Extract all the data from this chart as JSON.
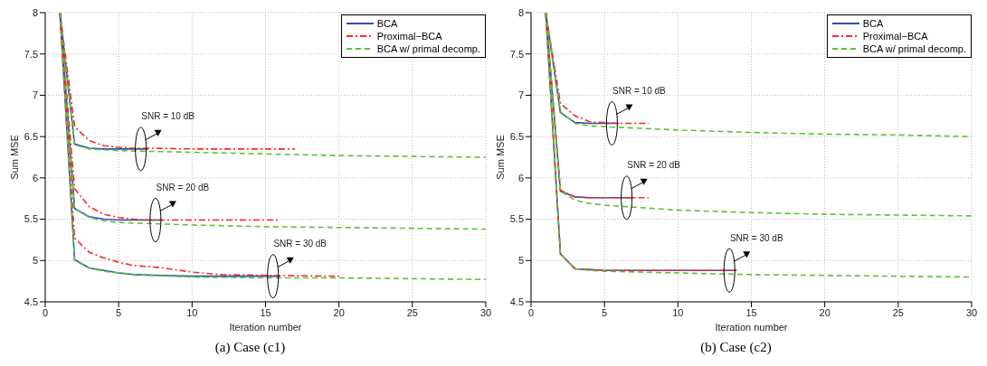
{
  "chart_data": [
    {
      "type": "line",
      "xlabel": "Iteration number",
      "ylabel": "Sum MSE",
      "xlim": [
        0,
        30
      ],
      "xticks": [
        0,
        5,
        10,
        15,
        20,
        25,
        30
      ],
      "ylim": [
        4.5,
        8
      ],
      "yticks": [
        4.5,
        5,
        5.5,
        6,
        6.5,
        7,
        7.5,
        8
      ],
      "grid": true,
      "legend": "top right",
      "series": [
        {
          "name": "BCA",
          "color": "#2f4fae",
          "line_style": "solid",
          "x": [
            1,
            2,
            3,
            4,
            5,
            6,
            7
          ],
          "values": [
            8,
            6.41,
            6.36,
            6.35,
            6.35,
            6.35,
            6.35
          ]
        },
        {
          "name": "Proximal−BCA",
          "color": "#ff2626",
          "line_style": "dashdot",
          "x": [
            1,
            2,
            3,
            4,
            5,
            6,
            7,
            10,
            13,
            17
          ],
          "values": [
            8,
            6.62,
            6.45,
            6.39,
            6.37,
            6.36,
            6.36,
            6.35,
            6.35,
            6.35
          ]
        },
        {
          "name": "BCA w/ primal decomp.",
          "color": "#5cc236",
          "line_style": "dashed",
          "x": [
            1,
            2,
            3,
            4,
            5,
            10,
            15,
            20,
            25,
            30
          ],
          "values": [
            8,
            6.4,
            6.35,
            6.34,
            6.33,
            6.31,
            6.29,
            6.27,
            6.26,
            6.25
          ]
        },
        {
          "color": "#2f4fae",
          "line_style": "solid",
          "x": [
            1,
            2,
            3,
            4,
            5,
            6,
            7,
            8
          ],
          "values": [
            8,
            5.63,
            5.53,
            5.5,
            5.49,
            5.49,
            5.49,
            5.49
          ]
        },
        {
          "color": "#ff2626",
          "line_style": "dashdot",
          "x": [
            1,
            2,
            3,
            4,
            5,
            6,
            7,
            8,
            12,
            16
          ],
          "values": [
            8,
            5.87,
            5.65,
            5.56,
            5.52,
            5.5,
            5.49,
            5.49,
            5.49,
            5.49
          ]
        },
        {
          "color": "#5cc236",
          "line_style": "dashed",
          "x": [
            1,
            2,
            3,
            4,
            5,
            10,
            15,
            20,
            25,
            30
          ],
          "values": [
            8,
            5.63,
            5.52,
            5.48,
            5.46,
            5.43,
            5.41,
            5.4,
            5.39,
            5.38
          ]
        },
        {
          "color": "#2f4fae",
          "line_style": "solid",
          "x": [
            1,
            2,
            3,
            4,
            5,
            6,
            8,
            10,
            13,
            16
          ],
          "values": [
            8,
            5.01,
            4.91,
            4.88,
            4.85,
            4.83,
            4.82,
            4.81,
            4.81,
            4.81
          ]
        },
        {
          "color": "#ff2626",
          "line_style": "dashdot",
          "x": [
            1,
            2,
            3,
            4,
            5,
            6,
            8,
            10,
            12,
            15,
            20
          ],
          "values": [
            8,
            5.27,
            5.1,
            5.03,
            4.98,
            4.94,
            4.91,
            4.86,
            4.83,
            4.82,
            4.81
          ]
        },
        {
          "color": "#5cc236",
          "line_style": "dashed",
          "x": [
            1,
            2,
            3,
            4,
            5,
            7,
            10,
            15,
            20,
            25,
            30
          ],
          "values": [
            8,
            5.0,
            4.91,
            4.87,
            4.85,
            4.82,
            4.8,
            4.79,
            4.79,
            4.78,
            4.77
          ]
        }
      ],
      "annotations": [
        "SNR = 10 dB",
        "SNR = 20 dB",
        "SNR = 30 dB",
        "(a)  Case (c1)"
      ]
    },
    {
      "type": "line",
      "xlabel": "Iteration number",
      "ylabel": "Sum MSE",
      "xlim": [
        0,
        30
      ],
      "xticks": [
        0,
        5,
        10,
        15,
        20,
        25,
        30
      ],
      "ylim": [
        4.5,
        8
      ],
      "yticks": [
        4.5,
        5,
        5.5,
        6,
        6.5,
        7,
        7.5,
        8
      ],
      "grid": true,
      "legend": "top right",
      "series": [
        {
          "name": "BCA",
          "color": "#2f4fae",
          "line_style": "solid",
          "x": [
            1,
            2,
            3,
            4,
            5,
            6
          ],
          "values": [
            8,
            6.79,
            6.67,
            6.66,
            6.66,
            6.66
          ]
        },
        {
          "name": "Proximal−BCA",
          "color": "#ff2626",
          "line_style": "dashdot",
          "x": [
            1,
            2,
            3,
            4,
            5,
            6,
            7,
            8
          ],
          "values": [
            8,
            6.9,
            6.75,
            6.68,
            6.67,
            6.66,
            6.66,
            6.66
          ]
        },
        {
          "name": "BCA w/ primal decomp.",
          "color": "#5cc236",
          "line_style": "dashed",
          "x": [
            1,
            2,
            3,
            4,
            5,
            10,
            15,
            20,
            25,
            30
          ],
          "values": [
            8,
            6.8,
            6.66,
            6.63,
            6.62,
            6.58,
            6.55,
            6.53,
            6.52,
            6.5
          ]
        },
        {
          "color": "#2f4fae",
          "line_style": "solid",
          "x": [
            1,
            2,
            3,
            4,
            5,
            6,
            7
          ],
          "values": [
            8,
            5.84,
            5.77,
            5.76,
            5.76,
            5.76,
            5.76
          ]
        },
        {
          "color": "#ff2626",
          "line_style": "dashdot",
          "x": [
            1,
            2,
            3,
            4,
            5,
            6,
            7,
            8
          ],
          "values": [
            8,
            5.85,
            5.77,
            5.76,
            5.76,
            5.76,
            5.76,
            5.76
          ]
        },
        {
          "color": "#5cc236",
          "line_style": "dashed",
          "x": [
            1,
            2,
            3,
            4,
            5,
            10,
            15,
            20,
            25,
            30
          ],
          "values": [
            8,
            5.84,
            5.73,
            5.69,
            5.67,
            5.61,
            5.58,
            5.56,
            5.55,
            5.54
          ]
        },
        {
          "color": "#2f4fae",
          "line_style": "solid",
          "x": [
            1,
            2,
            3,
            4,
            5,
            8,
            11,
            14
          ],
          "values": [
            8,
            5.08,
            4.9,
            4.89,
            4.88,
            4.88,
            4.88,
            4.88
          ]
        },
        {
          "color": "#ff2626",
          "line_style": "dashdot",
          "x": [
            1,
            2,
            3,
            4,
            5,
            8,
            11,
            14
          ],
          "values": [
            8,
            5.08,
            4.9,
            4.89,
            4.88,
            4.88,
            4.88,
            4.88
          ]
        },
        {
          "color": "#5cc236",
          "line_style": "dashed",
          "x": [
            1,
            2,
            3,
            4,
            5,
            10,
            15,
            20,
            25,
            30
          ],
          "values": [
            8,
            5.08,
            4.9,
            4.88,
            4.87,
            4.85,
            4.83,
            4.82,
            4.81,
            4.8
          ]
        }
      ],
      "annotations": [
        "SNR = 10 dB",
        "SNR = 20 dB",
        "SNR = 30 dB",
        "(b)  Case (c2)"
      ]
    }
  ]
}
